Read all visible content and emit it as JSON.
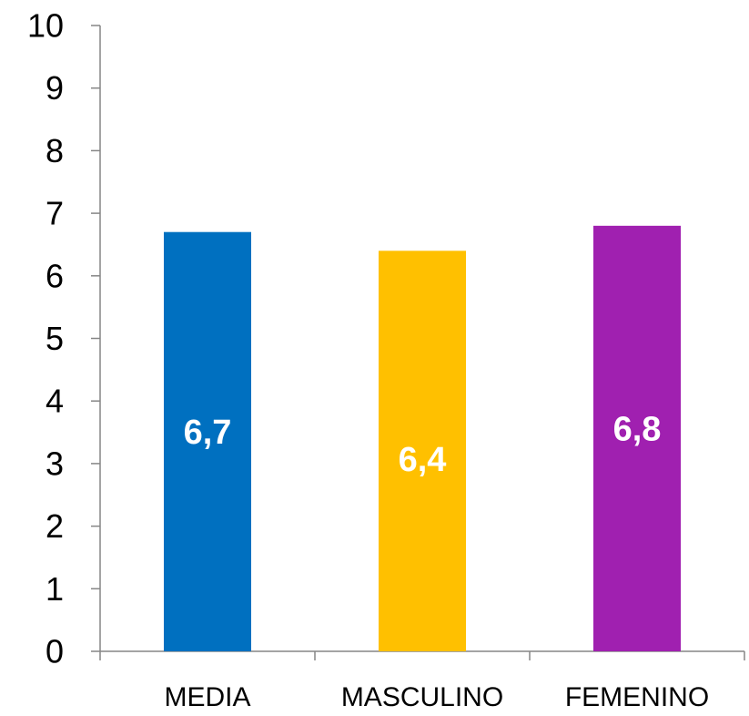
{
  "chart_data": {
    "type": "bar",
    "title": "",
    "xlabel": "",
    "ylabel": "",
    "ylim": [
      0,
      10
    ],
    "y_ticks": [
      0,
      1,
      2,
      3,
      4,
      5,
      6,
      7,
      8,
      9,
      10
    ],
    "categories": [
      "MEDIA",
      "MASCULINO",
      "FEMENINO"
    ],
    "values": [
      6.7,
      6.4,
      6.8
    ],
    "data_labels": [
      "6,7",
      "6,4",
      "6,8"
    ],
    "colors": [
      "#0070C0",
      "#FFC000",
      "#A020B0"
    ],
    "grid": false,
    "legend": "none"
  }
}
